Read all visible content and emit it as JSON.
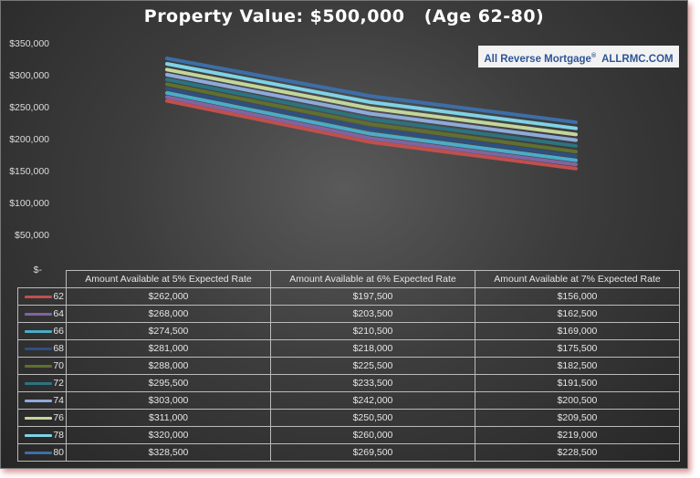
{
  "chart_data": {
    "type": "line",
    "title": "Property Value: $500,000   (Age 62-80)",
    "watermark": "All Reverse Mortgage® ALLRMC.COM",
    "categories": [
      "Amount Available at 5% Expected Rate",
      "Amount Available at 6% Expected Rate",
      "Amount Available at 7% Expected Rate"
    ],
    "ylim": [
      0,
      350000
    ],
    "yticks": [
      "$-",
      "$50,000",
      "$100,000",
      "$150,000",
      "$200,000",
      "$250,000",
      "$300,000",
      "$350,000"
    ],
    "ytick_values": [
      0,
      50000,
      100000,
      150000,
      200000,
      250000,
      300000,
      350000
    ],
    "grid": false,
    "legend": "data-table",
    "series": [
      {
        "name": "62",
        "color": "#c0504d",
        "values": [
          262000,
          197500,
          156000
        ],
        "labels": [
          "$262,000",
          "$197,500",
          "$156,000"
        ]
      },
      {
        "name": "64",
        "color": "#8064a2",
        "values": [
          268000,
          203500,
          162500
        ],
        "labels": [
          "$268,000",
          "$203,500",
          "$162,500"
        ]
      },
      {
        "name": "66",
        "color": "#4bacc6",
        "values": [
          274500,
          210500,
          169000
        ],
        "labels": [
          "$274,500",
          "$210,500",
          "$169,000"
        ]
      },
      {
        "name": "68",
        "color": "#2f4f80",
        "values": [
          281000,
          218000,
          175500
        ],
        "labels": [
          "$281,000",
          "$218,000",
          "$175,500"
        ]
      },
      {
        "name": "70",
        "color": "#5f7030",
        "values": [
          288000,
          225500,
          182500
        ],
        "labels": [
          "$288,000",
          "$225,500",
          "$182,500"
        ]
      },
      {
        "name": "72",
        "color": "#2c7380",
        "values": [
          295500,
          233500,
          191500
        ],
        "labels": [
          "$295,500",
          "$233,500",
          "$191,500"
        ]
      },
      {
        "name": "74",
        "color": "#8eaadb",
        "values": [
          303000,
          242000,
          200500
        ],
        "labels": [
          "$303,000",
          "$242,000",
          "$200,500"
        ]
      },
      {
        "name": "76",
        "color": "#c3d69b",
        "values": [
          311000,
          250500,
          209500
        ],
        "labels": [
          "$311,000",
          "$250,500",
          "$209,500"
        ]
      },
      {
        "name": "78",
        "color": "#7fd3e6",
        "values": [
          320000,
          260000,
          219000
        ],
        "labels": [
          "$320,000",
          "$260,000",
          "$219,000"
        ]
      },
      {
        "name": "80",
        "color": "#3d6ea8",
        "values": [
          328500,
          269500,
          228500
        ],
        "labels": [
          "$328,500",
          "$269,500",
          "$228,500"
        ]
      }
    ]
  }
}
